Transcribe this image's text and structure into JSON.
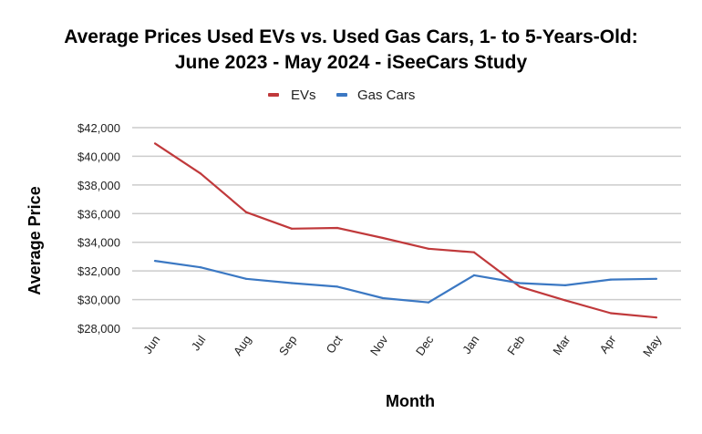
{
  "chart_data": {
    "type": "line",
    "title_lines": [
      "Average Prices Used EVs vs. Used Gas Cars, 1- to 5-Years-Old:",
      "June 2023 - May 2024 - iSeeCars Study"
    ],
    "xlabel": "Month",
    "ylabel": "Average Price",
    "categories": [
      "Jun",
      "Jul",
      "Aug",
      "Sep",
      "Oct",
      "Nov",
      "Dec",
      "Jan",
      "Feb",
      "Mar",
      "Apr",
      "May"
    ],
    "ylim": [
      28000,
      42000
    ],
    "yticks": [
      28000,
      30000,
      32000,
      34000,
      36000,
      38000,
      40000,
      42000
    ],
    "ytick_labels": [
      "$28,000",
      "$30,000",
      "$32,000",
      "$34,000",
      "$36,000",
      "$38,000",
      "$40,000",
      "$42,000"
    ],
    "grid": true,
    "legend_position": "top",
    "series": [
      {
        "name": "EVs",
        "color": "#c0393b",
        "values": [
          40900,
          38800,
          36100,
          34950,
          35000,
          34300,
          33550,
          33300,
          30900,
          29950,
          29050,
          28750
        ]
      },
      {
        "name": "Gas Cars",
        "color": "#3b78c3",
        "values": [
          32700,
          32250,
          31450,
          31150,
          30900,
          30100,
          29800,
          31700,
          31150,
          31000,
          31400,
          31450
        ]
      }
    ]
  }
}
